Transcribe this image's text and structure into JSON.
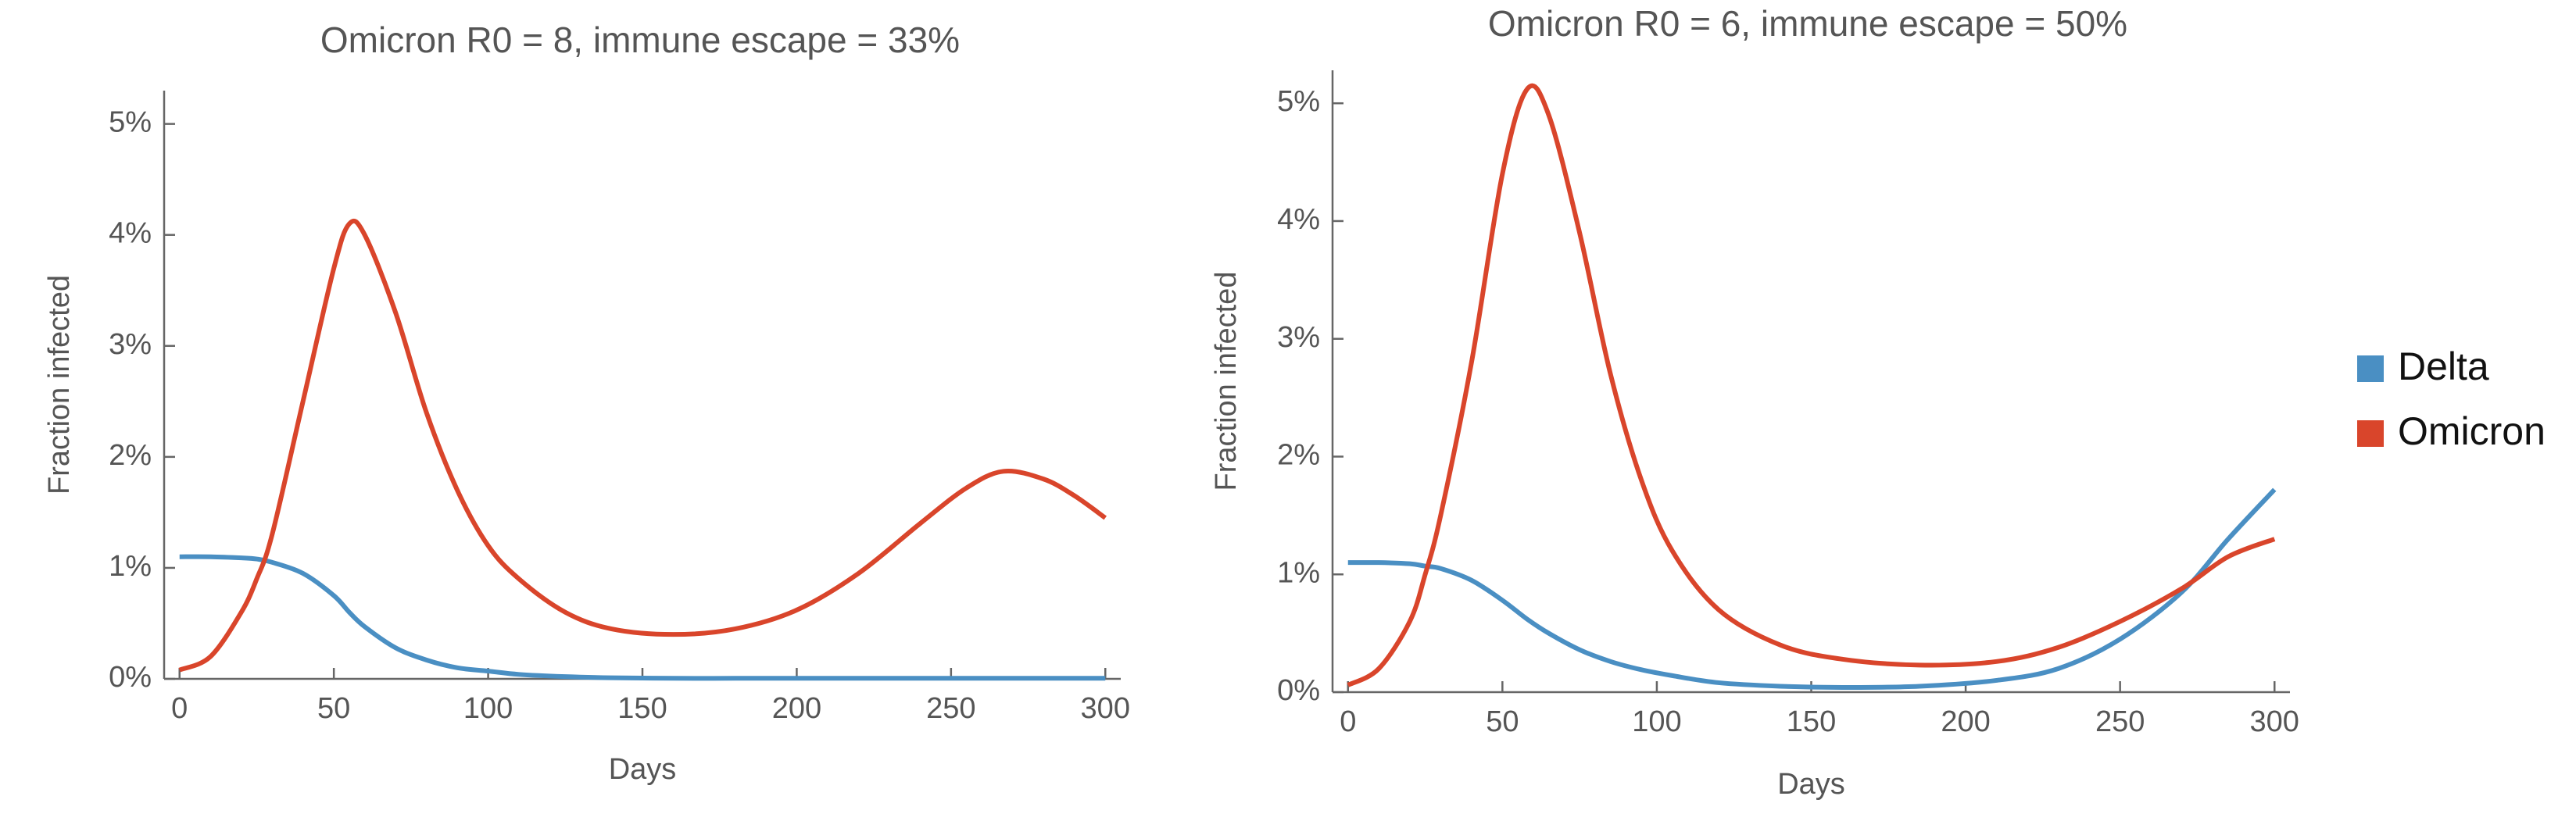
{
  "chart_data": [
    {
      "type": "line",
      "title": "Omicron R0 = 8, immune escape = 33%",
      "xlabel": "Days",
      "ylabel": "Fraction infected",
      "x": [
        0,
        10,
        20,
        25,
        30,
        40,
        50,
        55,
        60,
        70,
        80,
        90,
        100,
        110,
        125,
        140,
        160,
        180,
        200,
        220,
        240,
        255,
        267,
        280,
        290,
        300
      ],
      "series": [
        {
          "name": "Delta",
          "color": "#4a8fc3",
          "values": [
            1.1,
            1.1,
            1.09,
            1.08,
            1.05,
            0.95,
            0.75,
            0.6,
            0.47,
            0.28,
            0.17,
            0.1,
            0.07,
            0.04,
            0.02,
            0.01,
            0.005,
            0.005,
            0.005,
            0.005,
            0.005,
            0.005,
            0.005,
            0.005,
            0.005,
            0.005
          ]
        },
        {
          "name": "Omicron",
          "color": "#d9452b",
          "values": [
            0.08,
            0.2,
            0.6,
            0.9,
            1.3,
            2.5,
            3.7,
            4.1,
            4.0,
            3.3,
            2.4,
            1.7,
            1.2,
            0.9,
            0.6,
            0.45,
            0.4,
            0.45,
            0.62,
            0.95,
            1.4,
            1.72,
            1.87,
            1.8,
            1.65,
            1.45
          ]
        }
      ],
      "xlim": [
        -5,
        305
      ],
      "xticks": [
        0,
        50,
        100,
        150,
        200,
        250,
        300
      ],
      "ylim": [
        0,
        5.3
      ],
      "yticks": [
        {
          "value": 0,
          "label": "0%"
        },
        {
          "value": 1,
          "label": "1%"
        },
        {
          "value": 2,
          "label": "2%"
        },
        {
          "value": 3,
          "label": "3%"
        },
        {
          "value": 4,
          "label": "4%"
        },
        {
          "value": 5,
          "label": "5%"
        }
      ]
    },
    {
      "type": "line",
      "title": "Omicron R0 = 6, immune escape = 50%",
      "xlabel": "Days",
      "ylabel": "Fraction infected",
      "x": [
        0,
        10,
        20,
        25,
        30,
        40,
        50,
        58,
        65,
        75,
        85,
        95,
        105,
        120,
        140,
        160,
        185,
        210,
        230,
        250,
        270,
        285,
        300
      ],
      "series": [
        {
          "name": "Delta",
          "color": "#4a8fc3",
          "values": [
            1.1,
            1.1,
            1.09,
            1.07,
            1.05,
            0.95,
            0.78,
            0.62,
            0.5,
            0.36,
            0.26,
            0.19,
            0.14,
            0.08,
            0.05,
            0.04,
            0.05,
            0.1,
            0.2,
            0.45,
            0.85,
            1.3,
            1.72
          ]
        },
        {
          "name": "Omicron",
          "color": "#d9452b",
          "values": [
            0.06,
            0.2,
            0.6,
            1.0,
            1.5,
            2.8,
            4.4,
            5.12,
            4.9,
            3.9,
            2.7,
            1.8,
            1.2,
            0.7,
            0.4,
            0.28,
            0.23,
            0.26,
            0.38,
            0.6,
            0.88,
            1.15,
            1.3
          ]
        }
      ],
      "xlim": [
        -5,
        305
      ],
      "xticks": [
        0,
        50,
        100,
        150,
        200,
        250,
        300
      ],
      "ylim": [
        0,
        5.28
      ],
      "yticks": [
        {
          "value": 0,
          "label": "0%"
        },
        {
          "value": 1,
          "label": "1%"
        },
        {
          "value": 2,
          "label": "2%"
        },
        {
          "value": 3,
          "label": "3%"
        },
        {
          "value": 4,
          "label": "4%"
        },
        {
          "value": 5,
          "label": "5%"
        }
      ]
    }
  ]
}
